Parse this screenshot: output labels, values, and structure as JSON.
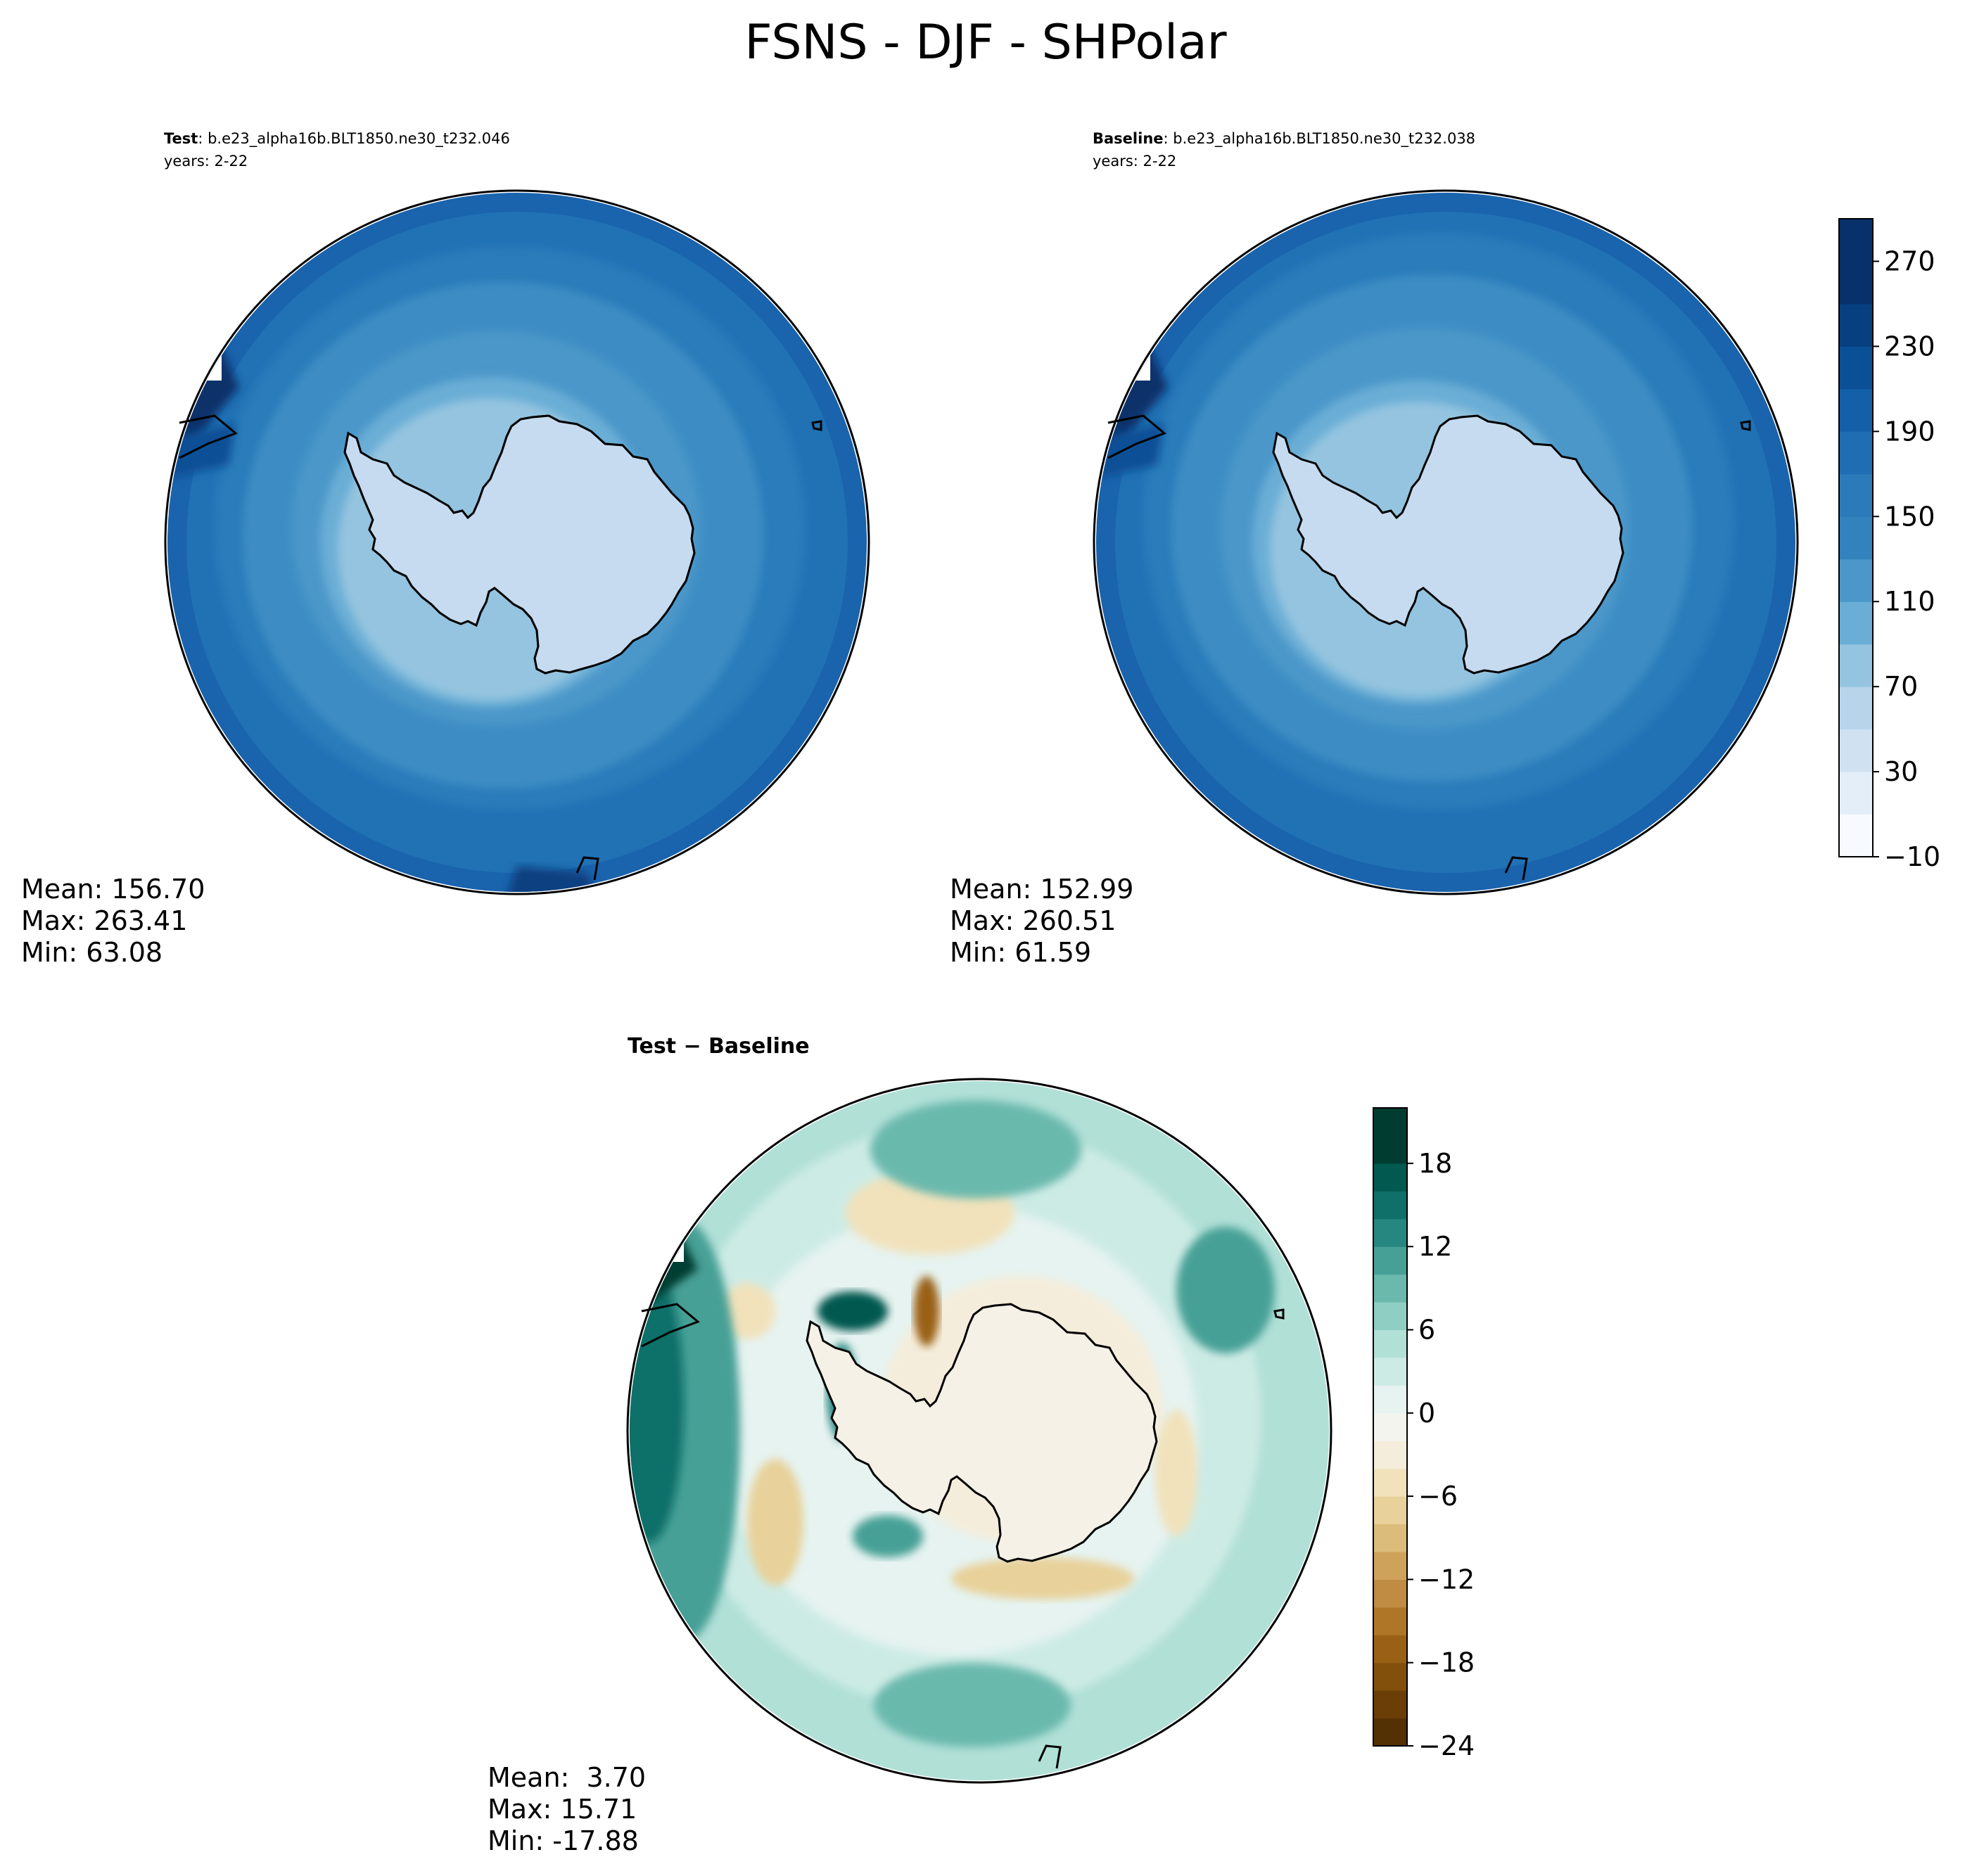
{
  "figure": {
    "title": "FSNS - DJF - SHPolar"
  },
  "panels": [
    {
      "id": "test",
      "title_bold": "Test",
      "title_rest": ": b.e23_alpha16b.BLT1850.ne30_t232.046",
      "subtitle": "years: 2-22",
      "stats": [
        "Mean: 156.70",
        "Max: 263.41",
        "Min: 63.08"
      ]
    },
    {
      "id": "baseline",
      "title_bold": "Baseline",
      "title_rest": ": b.e23_alpha16b.BLT1850.ne30_t232.038",
      "subtitle": "years: 2-22",
      "stats": [
        "Mean: 152.99",
        "Max: 260.51",
        "Min: 61.59"
      ]
    },
    {
      "id": "diff",
      "title_bold": "Test − Baseline",
      "title_rest": "",
      "subtitle": "",
      "stats": [
        "Mean:  3.70",
        "Max: 15.71",
        "Min: -17.88"
      ]
    }
  ],
  "colorbars": [
    {
      "id": "main",
      "colormap": "Blues",
      "levels": [
        -10,
        10,
        30,
        50,
        70,
        90,
        110,
        130,
        150,
        170,
        190,
        210,
        230,
        250,
        270,
        290
      ],
      "tick_labels": [
        "−10",
        "30",
        "70",
        "110",
        "150",
        "190",
        "230",
        "270"
      ],
      "tick_values": [
        -10,
        30,
        70,
        110,
        150,
        190,
        230,
        270
      ],
      "colors": [
        "#f7fbff",
        "#e3eef8",
        "#d0e1f2",
        "#b7d4ea",
        "#94c4df",
        "#6aaed6",
        "#4b97c9",
        "#3282be",
        "#2b7bba",
        "#1f6eb3",
        "#1460a8",
        "#0a5096",
        "#083f80",
        "#08306b",
        "#08306b"
      ]
    },
    {
      "id": "diff",
      "colormap": "BrBG",
      "levels": [
        -24,
        -22,
        -20,
        -18,
        -16,
        -14,
        -12,
        -10,
        -8,
        -6,
        -4,
        -2,
        0,
        2,
        4,
        6,
        8,
        10,
        12,
        14,
        16,
        18,
        20,
        22
      ],
      "tick_labels": [
        "−24",
        "−18",
        "−12",
        "−6",
        "0",
        "6",
        "12",
        "18"
      ],
      "tick_values": [
        -24,
        -18,
        -12,
        -6,
        0,
        6,
        12,
        18
      ],
      "colors": [
        "#543005",
        "#6b3d07",
        "#83500c",
        "#9a6116",
        "#b07628",
        "#c08b42",
        "#cfa25c",
        "#dcbc7a",
        "#e8d19a",
        "#f1e2bb",
        "#f5eddb",
        "#f4f4ee",
        "#e6f3f0",
        "#cdebe5",
        "#b1e0d7",
        "#8fcfc3",
        "#6bb9ad",
        "#46a096",
        "#268780",
        "#0f6f69",
        "#02594f",
        "#003c30",
        "#003c30"
      ]
    }
  ],
  "chart_data": [
    {
      "type": "heatmap",
      "projection": "south polar stereographic",
      "title": "Test : b.e23_alpha16b.BLT1850.ne30_t232.046",
      "subtitle": "years: 2-22",
      "variable": "FSNS",
      "season": "DJF",
      "region": "SHPolar",
      "mean": 156.7,
      "max": 263.41,
      "min": 63.08,
      "contour_levels": [
        -10,
        10,
        30,
        50,
        70,
        90,
        110,
        130,
        150,
        170,
        190,
        210,
        230,
        250,
        270,
        290
      ],
      "colorbar_ticks": [
        -10,
        30,
        70,
        110,
        150,
        190,
        230,
        270
      ],
      "colorbar_range": [
        -10,
        290
      ]
    },
    {
      "type": "heatmap",
      "projection": "south polar stereographic",
      "title": "Baseline : b.e23_alpha16b.BLT1850.ne30_t232.038",
      "subtitle": "years: 2-22",
      "variable": "FSNS",
      "season": "DJF",
      "region": "SHPolar",
      "mean": 152.99,
      "max": 260.51,
      "min": 61.59,
      "contour_levels": [
        -10,
        10,
        30,
        50,
        70,
        90,
        110,
        130,
        150,
        170,
        190,
        210,
        230,
        250,
        270,
        290
      ],
      "colorbar_ticks": [
        -10,
        30,
        70,
        110,
        150,
        190,
        230,
        270
      ],
      "colorbar_range": [
        -10,
        290
      ]
    },
    {
      "type": "heatmap",
      "projection": "south polar stereographic",
      "title": "Test − Baseline",
      "mean": 3.7,
      "max": 15.71,
      "min": -17.88,
      "colorbar_ticks": [
        -24,
        -18,
        -12,
        -6,
        0,
        6,
        12,
        18
      ],
      "colorbar_range": [
        -24,
        22
      ]
    }
  ]
}
